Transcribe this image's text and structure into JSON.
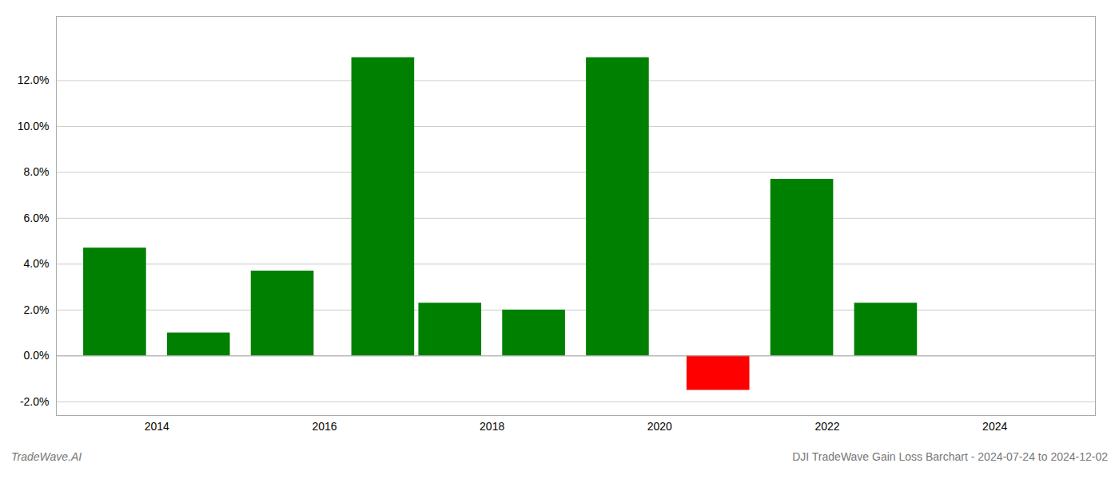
{
  "chart_data": {
    "type": "bar",
    "title": "DJI TradeWave Gain Loss Barchart - 2024-07-24 to 2024-12-02",
    "annotations": [
      "TradeWave.AI"
    ],
    "x": [
      2013.5,
      2014.5,
      2015.5,
      2016.7,
      2017.5,
      2018.5,
      2019.5,
      2020.7,
      2021.7,
      2022.7
    ],
    "values": [
      0.047,
      0.01,
      0.037,
      0.13,
      0.023,
      0.02,
      0.13,
      -0.015,
      0.077,
      0.023
    ],
    "colors": [
      "#008000",
      "#008000",
      "#008000",
      "#008000",
      "#008000",
      "#008000",
      "#008000",
      "#ff0000",
      "#008000",
      "#008000"
    ],
    "xlim": [
      2012.8,
      2025.2
    ],
    "xticks": [
      2014,
      2016,
      2018,
      2020,
      2022,
      2024
    ],
    "ylim": [
      -0.026,
      0.148
    ],
    "yticks": [
      {
        "value": -0.02,
        "label": "-2.0%"
      },
      {
        "value": 0.0,
        "label": "0.0%"
      },
      {
        "value": 0.02,
        "label": "2.0%"
      },
      {
        "value": 0.04,
        "label": "4.0%"
      },
      {
        "value": 0.06,
        "label": "6.0%"
      },
      {
        "value": 0.08,
        "label": "8.0%"
      },
      {
        "value": 0.1,
        "label": "10.0%"
      },
      {
        "value": 0.12,
        "label": "12.0%"
      }
    ],
    "grid": true
  }
}
